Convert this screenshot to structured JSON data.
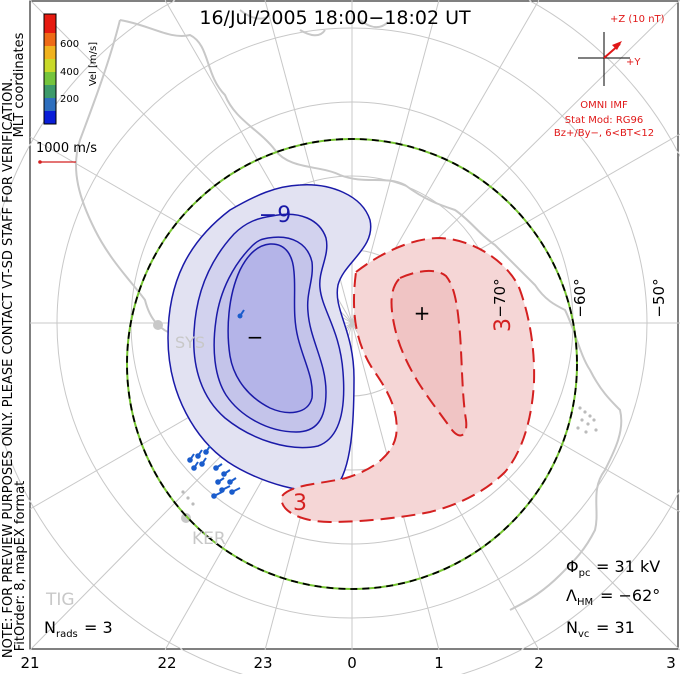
{
  "title": "16/Jul/2005 18:00−18:02 UT",
  "color_bar": {
    "label": "Vel [m/s]",
    "ticks": [
      "600",
      "400",
      "200"
    ],
    "colors": [
      "#0a1ed8",
      "#2e6fbe",
      "#3d9a6a",
      "#74c43c",
      "#c9d92a",
      "#f0b21e",
      "#ee6a16",
      "#e61a10"
    ]
  },
  "coord_label": "MLT coordinates",
  "preview_note": "NOTE: FOR PREVIEW PURPOSES ONLY. PLEASE CONTACT VT-SD STAFF FOR VERIFICATION.",
  "fit_note": "FitOrder: 8, mapEX format",
  "ref_vector": "1000 m/s",
  "imf": {
    "z_label": "+Z (10 nT)",
    "y_label": "+Y",
    "source": "OMNI IMF",
    "stat_mod": "Stat Mod: RG96",
    "bin": "Bz+/By−, 6<BT<12"
  },
  "lat_labels": [
    "−70°",
    "−60°",
    "−50°"
  ],
  "mlt_labels": [
    "21",
    "22",
    "23",
    "0",
    "1",
    "2",
    "3"
  ],
  "contour_labels": {
    "neg": "−9",
    "pos": "3",
    "pos_bottom": "3"
  },
  "markers": {
    "min": "−",
    "max": "+"
  },
  "stations": [
    "KER",
    "TIG"
  ],
  "stats": {
    "phi_pc": "= 31 kV",
    "lambda_hm": "= −62°",
    "n_vc": "= 31",
    "n_rads": "= 3"
  },
  "colors": {
    "negative": "#1a1aa8",
    "positive": "#d42020",
    "heppner": "#77c632",
    "coast": "#c8c8c8",
    "grid": "#c8c8c8",
    "imf": "#e01818"
  }
}
